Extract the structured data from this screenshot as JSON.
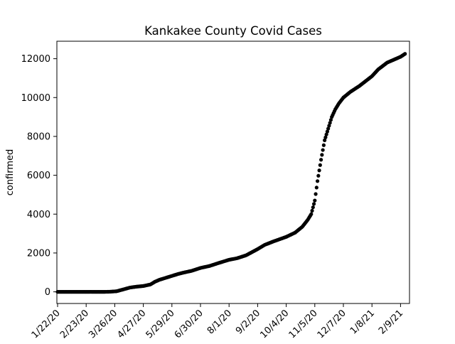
{
  "chart_data": {
    "type": "scatter",
    "title": "Kankakee County Covid Cases",
    "xlabel": "",
    "ylabel": "confirmed",
    "x_tick_labels": [
      "1/22/20",
      "2/23/20",
      "3/26/20",
      "4/27/20",
      "5/29/20",
      "6/30/20",
      "8/1/20",
      "9/2/20",
      "10/4/20",
      "11/5/20",
      "12/7/20",
      "1/8/21",
      "2/9/21"
    ],
    "y_ticks": [
      0,
      2000,
      4000,
      6000,
      8000,
      10000,
      12000
    ],
    "y_tick_labels": [
      "0",
      "2000",
      "4000",
      "6000",
      "8000",
      "10000",
      "12000"
    ],
    "ylim": [
      -600,
      12900
    ],
    "grid": false,
    "marker_color": "#000000",
    "series": [
      {
        "x": [
          "2020-01-22",
          "2020-02-01",
          "2020-02-15",
          "2020-03-01",
          "2020-03-15",
          "2020-03-20",
          "2020-03-28",
          "2020-04-05",
          "2020-04-12",
          "2020-04-20",
          "2020-04-27",
          "2020-05-05",
          "2020-05-10",
          "2020-05-15",
          "2020-05-22",
          "2020-05-29",
          "2020-06-05",
          "2020-06-12",
          "2020-06-20",
          "2020-06-30",
          "2020-07-10",
          "2020-07-20",
          "2020-08-01",
          "2020-08-10",
          "2020-08-20",
          "2020-09-02",
          "2020-09-10",
          "2020-09-20",
          "2020-10-04",
          "2020-10-14",
          "2020-10-22",
          "2020-10-28",
          "2020-11-01",
          "2020-11-05",
          "2020-11-08",
          "2020-11-12",
          "2020-11-16",
          "2020-11-20",
          "2020-11-24",
          "2020-11-28",
          "2020-12-02",
          "2020-12-07",
          "2020-12-15",
          "2020-12-25",
          "2021-01-08",
          "2021-01-15",
          "2021-01-25",
          "2021-02-09",
          "2021-02-14"
        ],
        "y": [
          0,
          0,
          0,
          0,
          0,
          5,
          30,
          130,
          220,
          270,
          300,
          380,
          520,
          620,
          720,
          820,
          920,
          1000,
          1080,
          1230,
          1330,
          1480,
          1650,
          1730,
          1880,
          2200,
          2420,
          2600,
          2830,
          3050,
          3350,
          3700,
          4000,
          4700,
          5700,
          6800,
          7800,
          8400,
          9000,
          9400,
          9700,
          10000,
          10300,
          10600,
          11100,
          11450,
          11800,
          12100,
          12250
        ]
      }
    ]
  }
}
